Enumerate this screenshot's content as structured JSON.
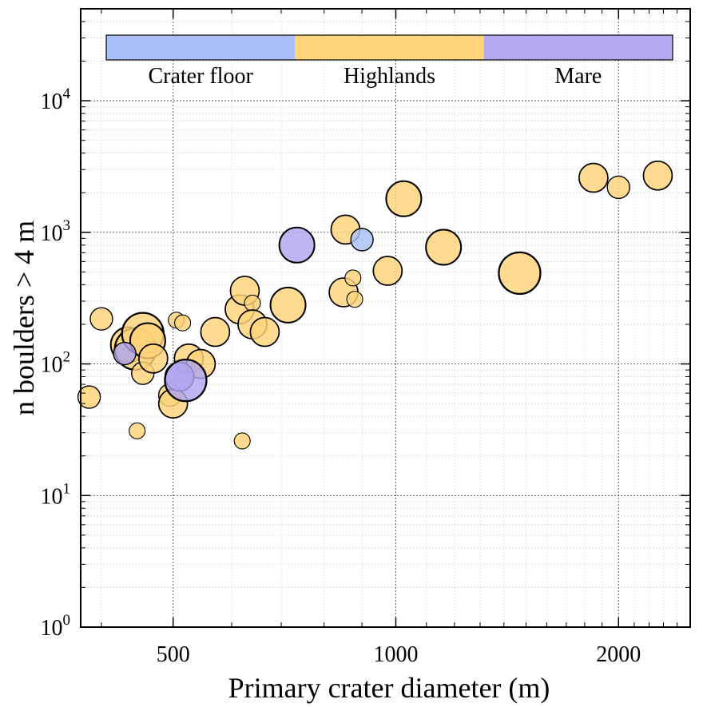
{
  "chart_data": {
    "type": "scatter",
    "title": "",
    "xlabel": "Primary crater diameter (m)",
    "ylabel": "n boulders > 4 m",
    "x_scale": "log",
    "y_scale": "log",
    "xlim": [
      375,
      2500
    ],
    "ylim": [
      1,
      50000
    ],
    "x_ticks": [
      {
        "value": 500,
        "label": "500"
      },
      {
        "value": 1000,
        "label": "1000"
      },
      {
        "value": 2000,
        "label": "2000"
      }
    ],
    "y_ticks": [
      {
        "value": 1,
        "base": "10",
        "exp": "0"
      },
      {
        "value": 10,
        "base": "10",
        "exp": "1"
      },
      {
        "value": 100,
        "base": "10",
        "exp": "2"
      },
      {
        "value": 1000,
        "base": "10",
        "exp": "3"
      },
      {
        "value": 10000,
        "base": "10",
        "exp": "4"
      }
    ],
    "grid": true,
    "legend_position": "top",
    "legend": [
      {
        "label": "Crater floor",
        "color": "#aabff7"
      },
      {
        "label": "Highlands",
        "color": "#ffd47a"
      },
      {
        "label": "Mare",
        "color": "#b4a8f0"
      }
    ],
    "series": [
      {
        "name": "Highlands",
        "color": "#ffd37a",
        "points": [
          {
            "x": 400,
            "y": 220,
            "size": 2
          },
          {
            "x": 385,
            "y": 56,
            "size": 2
          },
          {
            "x": 435,
            "y": 140,
            "size": 4
          },
          {
            "x": 445,
            "y": 130,
            "size": 5
          },
          {
            "x": 455,
            "y": 170,
            "size": 5
          },
          {
            "x": 462,
            "y": 150,
            "size": 4
          },
          {
            "x": 455,
            "y": 85,
            "size": 2
          },
          {
            "x": 447,
            "y": 31,
            "size": 1
          },
          {
            "x": 470,
            "y": 110,
            "size": 3
          },
          {
            "x": 495,
            "y": 58,
            "size": 2
          },
          {
            "x": 500,
            "y": 50,
            "size": 3
          },
          {
            "x": 505,
            "y": 215,
            "size": 1
          },
          {
            "x": 515,
            "y": 205,
            "size": 1
          },
          {
            "x": 525,
            "y": 110,
            "size": 3
          },
          {
            "x": 545,
            "y": 100,
            "size": 3
          },
          {
            "x": 570,
            "y": 175,
            "size": 3
          },
          {
            "x": 620,
            "y": 26,
            "size": 1
          },
          {
            "x": 615,
            "y": 260,
            "size": 3
          },
          {
            "x": 625,
            "y": 360,
            "size": 3
          },
          {
            "x": 640,
            "y": 290,
            "size": 1
          },
          {
            "x": 640,
            "y": 200,
            "size": 3
          },
          {
            "x": 665,
            "y": 175,
            "size": 3
          },
          {
            "x": 715,
            "y": 280,
            "size": 4
          },
          {
            "x": 850,
            "y": 350,
            "size": 3
          },
          {
            "x": 855,
            "y": 1050,
            "size": 3
          },
          {
            "x": 875,
            "y": 450,
            "size": 1
          },
          {
            "x": 880,
            "y": 310,
            "size": 1
          },
          {
            "x": 975,
            "y": 510,
            "size": 3
          },
          {
            "x": 1025,
            "y": 1800,
            "size": 4
          },
          {
            "x": 1160,
            "y": 770,
            "size": 4
          },
          {
            "x": 1470,
            "y": 490,
            "size": 5
          },
          {
            "x": 1850,
            "y": 2600,
            "size": 3
          },
          {
            "x": 2000,
            "y": 2200,
            "size": 2
          },
          {
            "x": 2260,
            "y": 2700,
            "size": 3
          }
        ]
      },
      {
        "name": "Mare",
        "color": "#b0a5f0",
        "points": [
          {
            "x": 430,
            "y": 120,
            "size": 2
          },
          {
            "x": 510,
            "y": 80,
            "size": 3
          },
          {
            "x": 520,
            "y": 75,
            "size": 5
          },
          {
            "x": 735,
            "y": 800,
            "size": 4
          }
        ]
      },
      {
        "name": "Crater floor",
        "color": "#aabff7",
        "points": [
          {
            "x": 900,
            "y": 880,
            "size": 2
          }
        ]
      }
    ]
  }
}
